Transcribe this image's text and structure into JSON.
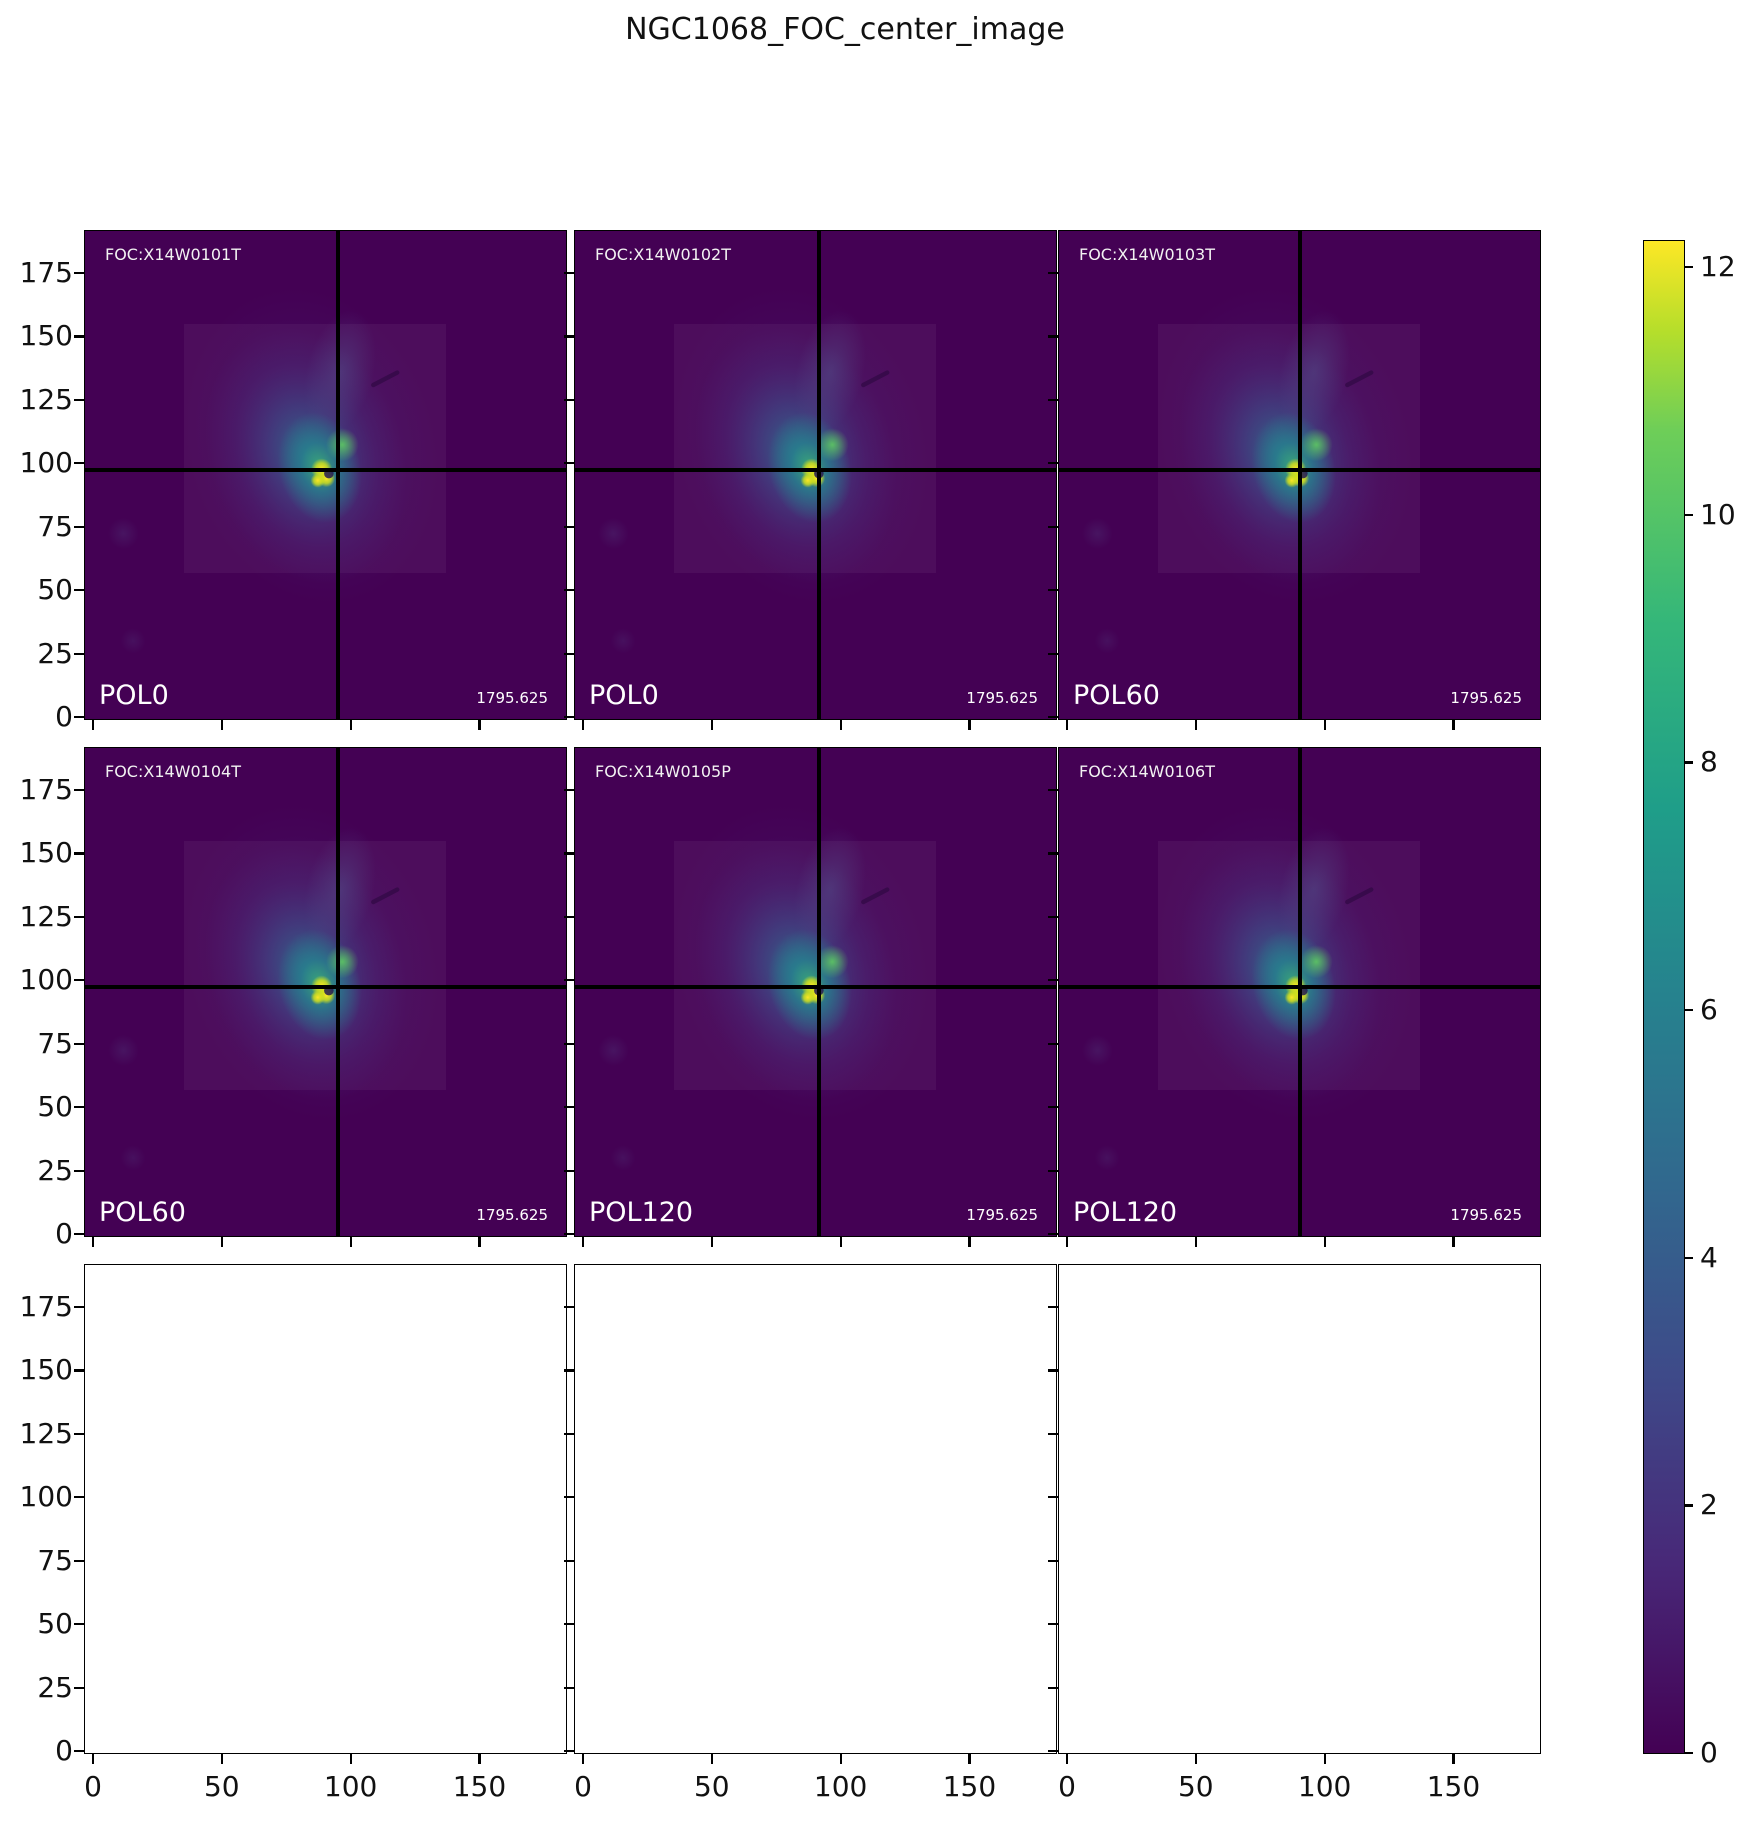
{
  "title": "NGC1068_FOC_center_image",
  "panels": [
    {
      "filled": true,
      "foc": "FOC:X14W0101T",
      "pol": "POL0",
      "value": "1795.625"
    },
    {
      "filled": true,
      "foc": "FOC:X14W0102T",
      "pol": "POL0",
      "value": "1795.625"
    },
    {
      "filled": true,
      "foc": "FOC:X14W0103T",
      "pol": "POL60",
      "value": "1795.625"
    },
    {
      "filled": true,
      "foc": "FOC:X14W0104T",
      "pol": "POL60",
      "value": "1795.625"
    },
    {
      "filled": true,
      "foc": "FOC:X14W0105P",
      "pol": "POL120",
      "value": "1795.625"
    },
    {
      "filled": true,
      "foc": "FOC:X14W0106T",
      "pol": "POL120",
      "value": "1795.625"
    },
    {
      "filled": false
    },
    {
      "filled": false
    },
    {
      "filled": false
    }
  ],
  "axes": {
    "x_ticks": [
      0,
      50,
      100,
      150
    ],
    "y_ticks": [
      175,
      150,
      125,
      100,
      75,
      50,
      25,
      0
    ]
  },
  "colorbar": {
    "ticks": [
      0,
      2,
      4,
      6,
      8,
      10,
      12
    ],
    "vmin": 0,
    "vmax": 12.3,
    "colormap": "viridis"
  },
  "chart_data": {
    "type": "heatmap",
    "title": "NGC1068_FOC_center_image",
    "grid": "3 columns x 3 rows of image subplots; bottom row is empty axes",
    "panels": [
      {
        "row": 0,
        "col": 0,
        "exposure": "FOC:X14W0101T",
        "polarizer": "POL0",
        "annotation_value": "1795.625"
      },
      {
        "row": 0,
        "col": 1,
        "exposure": "FOC:X14W0102T",
        "polarizer": "POL0",
        "annotation_value": "1795.625"
      },
      {
        "row": 0,
        "col": 2,
        "exposure": "FOC:X14W0103T",
        "polarizer": "POL60",
        "annotation_value": "1795.625"
      },
      {
        "row": 1,
        "col": 0,
        "exposure": "FOC:X14W0104T",
        "polarizer": "POL60",
        "annotation_value": "1795.625"
      },
      {
        "row": 1,
        "col": 1,
        "exposure": "FOC:X14W0105P",
        "polarizer": "POL120",
        "annotation_value": "1795.625"
      },
      {
        "row": 1,
        "col": 2,
        "exposure": "FOC:X14W0106T",
        "polarizer": "POL120",
        "annotation_value": "1795.625"
      },
      {
        "row": 2,
        "col": 0,
        "empty": true
      },
      {
        "row": 2,
        "col": 1,
        "empty": true
      },
      {
        "row": 2,
        "col": 2,
        "empty": true
      }
    ],
    "image_content": "NGC 1068 galaxy nucleus: diffuse blue-purple glow with bright teal-green core and small yellow peaks near image coords (95, 100); black crosshair lines mark the center in each filled panel",
    "xlabel": "",
    "ylabel": "",
    "x_range": [
      0,
      190
    ],
    "y_range": [
      0,
      190
    ],
    "x_tick_labels": [
      0,
      50,
      100,
      150
    ],
    "y_tick_labels": [
      175,
      150,
      125,
      100,
      75,
      50,
      25,
      0
    ],
    "crosshair_data_coords": [
      95,
      97
    ],
    "colorbar": {
      "min": 0,
      "max": 12.3,
      "tick_labels": [
        0,
        2,
        4,
        6,
        8,
        10,
        12
      ],
      "colormap": "viridis",
      "position": "right, full figure height"
    }
  }
}
